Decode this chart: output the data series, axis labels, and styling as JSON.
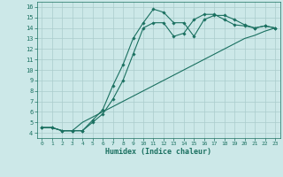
{
  "xlabel": "Humidex (Indice chaleur)",
  "bg_color": "#cce8e8",
  "line_color": "#1a7060",
  "grid_color": "#aacccc",
  "xlim": [
    -0.5,
    23.5
  ],
  "ylim": [
    3.5,
    16.5
  ],
  "xticks": [
    0,
    1,
    2,
    3,
    4,
    5,
    6,
    7,
    8,
    9,
    10,
    11,
    12,
    13,
    14,
    15,
    16,
    17,
    18,
    19,
    20,
    21,
    22,
    23
  ],
  "yticks": [
    4,
    5,
    6,
    7,
    8,
    9,
    10,
    11,
    12,
    13,
    14,
    15,
    16
  ],
  "line1_x": [
    0,
    1,
    2,
    3,
    4,
    5,
    6,
    7,
    8,
    9,
    10,
    11,
    12,
    13,
    14,
    15,
    16,
    17,
    18,
    19,
    20,
    21,
    22,
    23
  ],
  "line1_y": [
    4.5,
    4.5,
    4.2,
    4.2,
    4.2,
    5.2,
    6.2,
    8.5,
    10.5,
    13.0,
    14.5,
    15.8,
    15.5,
    14.5,
    14.5,
    13.2,
    14.8,
    15.2,
    15.2,
    14.8,
    14.3,
    14.0,
    14.2,
    14.0
  ],
  "line2_x": [
    0,
    1,
    2,
    3,
    4,
    5,
    6,
    7,
    8,
    9,
    10,
    11,
    12,
    13,
    14,
    15,
    16,
    17,
    18,
    19,
    20,
    21,
    22,
    23
  ],
  "line2_y": [
    4.5,
    4.5,
    4.2,
    4.2,
    4.2,
    5.0,
    5.8,
    7.2,
    9.0,
    11.5,
    14.0,
    14.5,
    14.5,
    13.2,
    13.5,
    14.8,
    15.3,
    15.3,
    14.8,
    14.3,
    14.2,
    14.0,
    14.2,
    14.0
  ],
  "line3_x": [
    0,
    1,
    2,
    3,
    4,
    5,
    6,
    7,
    8,
    9,
    10,
    11,
    12,
    13,
    14,
    15,
    16,
    17,
    18,
    19,
    20,
    21,
    22,
    23
  ],
  "line3_y": [
    4.5,
    4.5,
    4.2,
    4.2,
    5.0,
    5.5,
    6.0,
    6.5,
    7.0,
    7.5,
    8.0,
    8.5,
    9.0,
    9.5,
    10.0,
    10.5,
    11.0,
    11.5,
    12.0,
    12.5,
    13.0,
    13.3,
    13.7,
    14.0
  ]
}
